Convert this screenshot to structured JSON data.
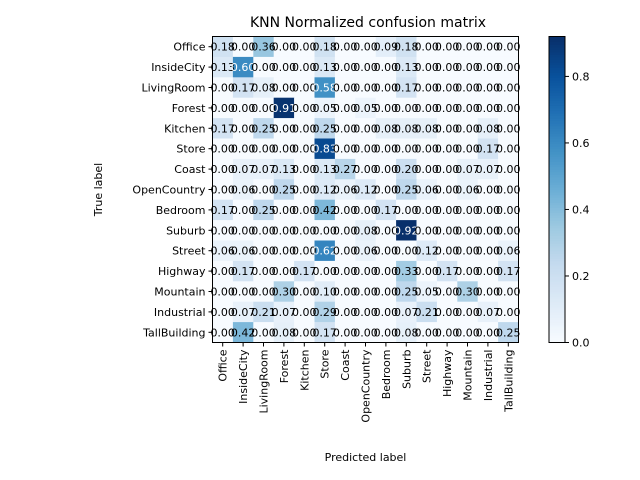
{
  "chart_data": {
    "type": "heatmap",
    "title": "KNN Normalized confusion matrix",
    "xlabel": "Predicted label",
    "ylabel": "True label",
    "labels": [
      "Office",
      "InsideCity",
      "LivingRoom",
      "Forest",
      "Kitchen",
      "Store",
      "Coast",
      "OpenCountry",
      "Bedroom",
      "Suburb",
      "Street",
      "Highway",
      "Mountain",
      "Industrial",
      "TallBuilding"
    ],
    "matrix": [
      [
        0.18,
        0.0,
        0.36,
        0.0,
        0.0,
        0.18,
        0.0,
        0.0,
        0.09,
        0.18,
        0.0,
        0.0,
        0.0,
        0.0,
        0.0
      ],
      [
        0.13,
        0.6,
        0.0,
        0.0,
        0.0,
        0.13,
        0.0,
        0.0,
        0.0,
        0.13,
        0.0,
        0.0,
        0.0,
        0.0,
        0.0
      ],
      [
        0.0,
        0.17,
        0.08,
        0.0,
        0.0,
        0.58,
        0.0,
        0.0,
        0.0,
        0.17,
        0.0,
        0.0,
        0.0,
        0.0,
        0.0
      ],
      [
        0.0,
        0.0,
        0.0,
        0.91,
        0.0,
        0.05,
        0.0,
        0.05,
        0.0,
        0.0,
        0.0,
        0.0,
        0.0,
        0.0,
        0.0
      ],
      [
        0.17,
        0.0,
        0.25,
        0.0,
        0.0,
        0.25,
        0.0,
        0.0,
        0.08,
        0.08,
        0.08,
        0.0,
        0.0,
        0.08,
        0.0
      ],
      [
        0.0,
        0.0,
        0.0,
        0.0,
        0.0,
        0.83,
        0.0,
        0.0,
        0.0,
        0.0,
        0.0,
        0.0,
        0.0,
        0.17,
        0.0
      ],
      [
        0.0,
        0.07,
        0.07,
        0.13,
        0.0,
        0.13,
        0.27,
        0.0,
        0.0,
        0.2,
        0.0,
        0.0,
        0.07,
        0.07,
        0.0
      ],
      [
        0.0,
        0.06,
        0.0,
        0.25,
        0.0,
        0.12,
        0.06,
        0.12,
        0.0,
        0.25,
        0.06,
        0.0,
        0.06,
        0.0,
        0.0
      ],
      [
        0.17,
        0.0,
        0.25,
        0.0,
        0.0,
        0.42,
        0.0,
        0.0,
        0.17,
        0.0,
        0.0,
        0.0,
        0.0,
        0.0,
        0.0
      ],
      [
        0.0,
        0.0,
        0.0,
        0.0,
        0.0,
        0.0,
        0.0,
        0.08,
        0.0,
        0.92,
        0.0,
        0.0,
        0.0,
        0.0,
        0.0
      ],
      [
        0.06,
        0.06,
        0.0,
        0.0,
        0.0,
        0.62,
        0.0,
        0.06,
        0.0,
        0.0,
        0.12,
        0.0,
        0.0,
        0.0,
        0.06
      ],
      [
        0.0,
        0.17,
        0.0,
        0.0,
        0.17,
        0.0,
        0.0,
        0.0,
        0.0,
        0.33,
        0.0,
        0.17,
        0.0,
        0.0,
        0.17
      ],
      [
        0.0,
        0.0,
        0.0,
        0.3,
        0.0,
        0.1,
        0.0,
        0.0,
        0.0,
        0.25,
        0.05,
        0.0,
        0.3,
        0.0,
        0.0
      ],
      [
        0.0,
        0.07,
        0.21,
        0.07,
        0.0,
        0.29,
        0.0,
        0.0,
        0.0,
        0.07,
        0.21,
        0.0,
        0.0,
        0.07,
        0.0
      ],
      [
        0.0,
        0.42,
        0.0,
        0.08,
        0.0,
        0.17,
        0.0,
        0.0,
        0.0,
        0.08,
        0.0,
        0.0,
        0.0,
        0.0,
        0.25
      ]
    ],
    "cell_text_format": "2 decimals",
    "colormap": "Blues",
    "vmin": 0.0,
    "vmax": 0.92,
    "colorbar": {
      "ticks": [
        0.0,
        0.2,
        0.4,
        0.6,
        0.8
      ],
      "tick_labels": [
        "0.0",
        "0.2",
        "0.4",
        "0.6",
        "0.8"
      ]
    },
    "grid": false,
    "text_threshold": 0.46
  }
}
